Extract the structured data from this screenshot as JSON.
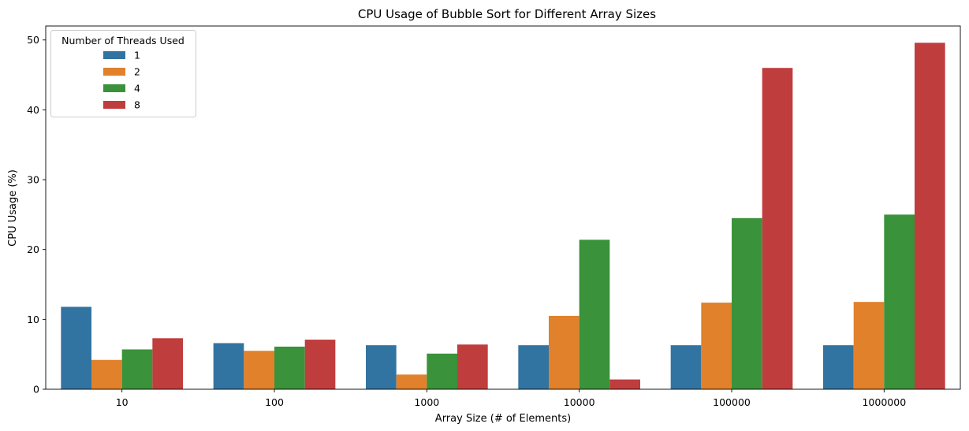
{
  "chart_data": {
    "type": "bar",
    "title": "CPU Usage of Bubble Sort for Different Array Sizes",
    "xlabel": "Array Size (# of Elements)",
    "ylabel": "CPU Usage (%)",
    "categories": [
      "10",
      "100",
      "1000",
      "10000",
      "100000",
      "1000000"
    ],
    "ylim": [
      0,
      52
    ],
    "yticks": [
      0,
      10,
      20,
      30,
      40,
      50
    ],
    "grid": false,
    "legend": {
      "title": "Number of Threads Used",
      "placement": "top-left"
    },
    "series": [
      {
        "name": "1",
        "color": "#3274a1",
        "values": [
          11.8,
          6.6,
          6.3,
          6.3,
          6.3,
          6.3
        ]
      },
      {
        "name": "2",
        "color": "#e1812c",
        "values": [
          4.2,
          5.5,
          2.1,
          10.5,
          12.4,
          12.5
        ]
      },
      {
        "name": "4",
        "color": "#3a923a",
        "values": [
          5.7,
          6.1,
          5.1,
          21.4,
          24.5,
          25.0
        ]
      },
      {
        "name": "8",
        "color": "#c03d3e",
        "values": [
          7.3,
          7.1,
          6.4,
          1.4,
          46.0,
          49.6
        ]
      }
    ]
  }
}
